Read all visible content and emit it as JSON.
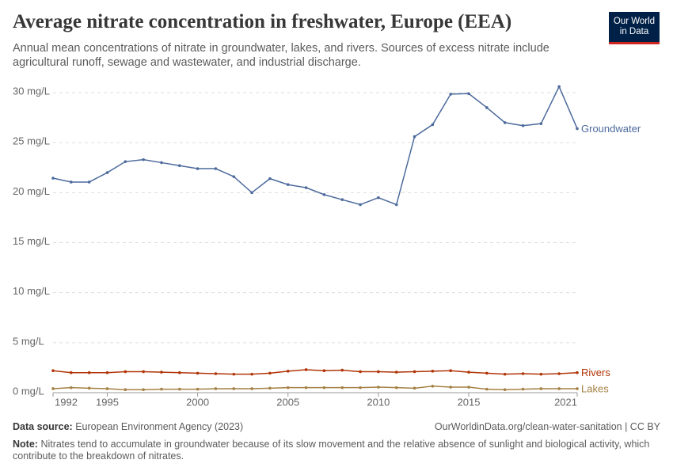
{
  "chart_data": {
    "type": "line",
    "title": "Average nitrate concentration in freshwater, Europe (EEA)",
    "subtitle": "Annual mean concentrations of nitrate in groundwater, lakes, and rivers. Sources of excess nitrate include agricultural runoff, sewage and wastewater, and industrial discharge.",
    "logo": [
      "Our World",
      "in Data"
    ],
    "source_label": "Data source:",
    "source": "European Environment Agency (2023)",
    "url": "OurWorldinData.org/clean-water-sanitation | CC BY",
    "note_label": "Note:",
    "note": "Nitrates tend to accumulate in groundwater because of its slow movement and the relative absence of sunlight and biological activity, which contribute to the breakdown of nitrates.",
    "x": [
      1992,
      1993,
      1994,
      1995,
      1996,
      1997,
      1998,
      1999,
      2000,
      2001,
      2002,
      2003,
      2004,
      2005,
      2006,
      2007,
      2008,
      2009,
      2010,
      2011,
      2012,
      2013,
      2014,
      2015,
      2016,
      2017,
      2018,
      2019,
      2020,
      2021
    ],
    "xlim": [
      1992,
      2021
    ],
    "xticks": [
      1992,
      1995,
      2000,
      2005,
      2010,
      2015,
      2021
    ],
    "ylim": [
      0,
      30
    ],
    "yticks": [
      {
        "value": 0,
        "label": "0 mg/L"
      },
      {
        "value": 5,
        "label": "5 mg/L"
      },
      {
        "value": 10,
        "label": "10 mg/L"
      },
      {
        "value": 15,
        "label": "15 mg/L"
      },
      {
        "value": 20,
        "label": "20 mg/L"
      },
      {
        "value": 25,
        "label": "25 mg/L"
      },
      {
        "value": 30,
        "label": "30 mg/L"
      }
    ],
    "grid": true,
    "series": [
      {
        "name": "Groundwater",
        "color": "#4c6a9c",
        "values": [
          21.45,
          21.06,
          21.06,
          22.0,
          23.1,
          23.3,
          23.0,
          22.7,
          22.4,
          22.4,
          21.6,
          20.0,
          21.4,
          20.8,
          20.5,
          19.8,
          19.3,
          18.8,
          19.5,
          18.8,
          25.6,
          26.8,
          29.85,
          29.9,
          28.5,
          27.0,
          26.7,
          26.9,
          30.6,
          26.4
        ]
      },
      {
        "name": "Rivers",
        "color": "#b13507",
        "values": [
          2.2,
          2.0,
          2.0,
          2.0,
          2.1,
          2.1,
          2.05,
          2.0,
          1.95,
          1.9,
          1.85,
          1.85,
          1.95,
          2.15,
          2.3,
          2.2,
          2.25,
          2.1,
          2.1,
          2.05,
          2.1,
          2.15,
          2.2,
          2.05,
          1.95,
          1.85,
          1.9,
          1.85,
          1.9,
          2.0
        ]
      },
      {
        "name": "Lakes",
        "color": "#a48144",
        "values": [
          0.4,
          0.5,
          0.45,
          0.4,
          0.3,
          0.3,
          0.35,
          0.35,
          0.35,
          0.4,
          0.4,
          0.4,
          0.45,
          0.5,
          0.5,
          0.5,
          0.5,
          0.5,
          0.55,
          0.5,
          0.45,
          0.65,
          0.55,
          0.55,
          0.35,
          0.3,
          0.35,
          0.4,
          0.4,
          0.4
        ]
      }
    ]
  }
}
